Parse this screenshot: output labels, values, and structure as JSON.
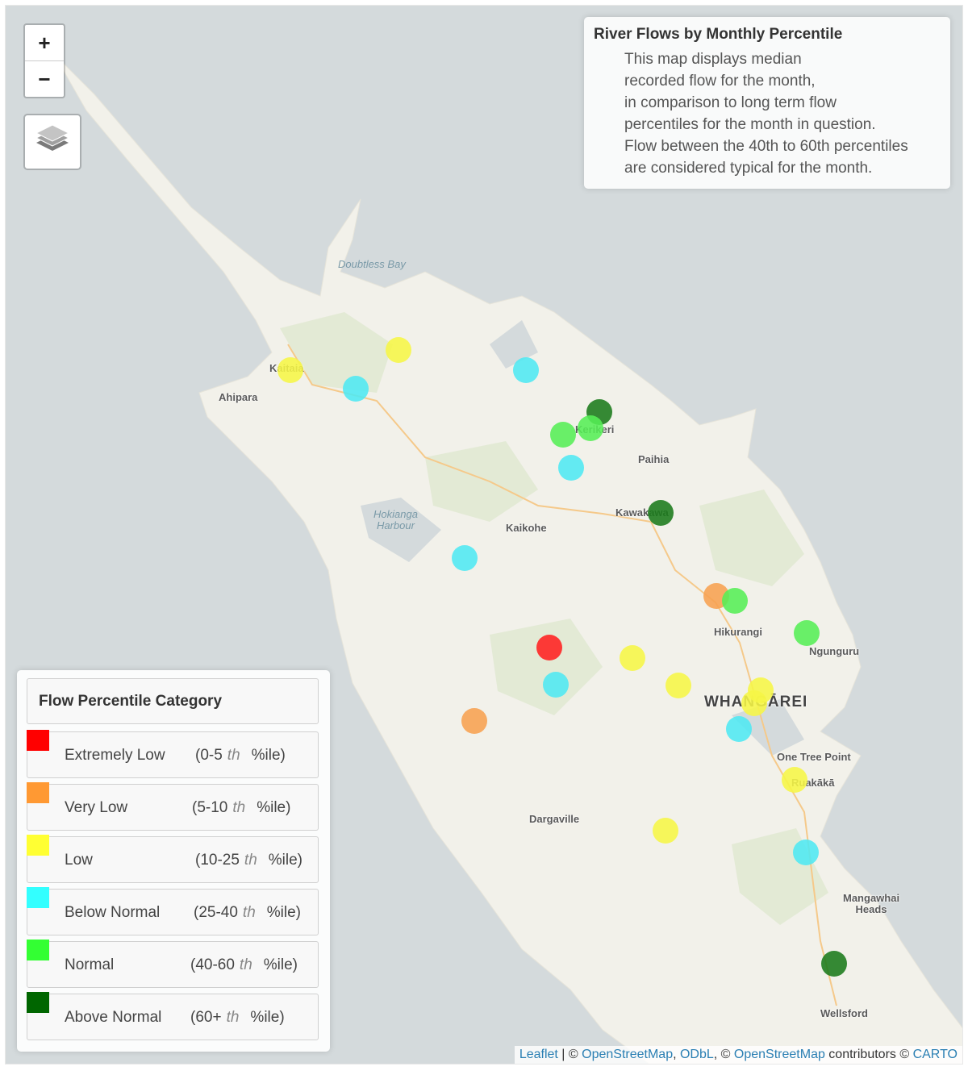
{
  "map": {
    "zoom_in_label": "+",
    "zoom_out_label": "−",
    "layers_icon": "layers-icon",
    "land_color": "#f2f1ea",
    "water_color": "#d4dadc",
    "places": [
      {
        "name": "Doubtless Bay",
        "kind": "water"
      },
      {
        "name": "Kaitaia",
        "kind": "town"
      },
      {
        "name": "Ahipara",
        "kind": "town"
      },
      {
        "name": "Kerikeri",
        "kind": "town"
      },
      {
        "name": "Paihia",
        "kind": "town"
      },
      {
        "name": "Hokianga\nHarbour",
        "kind": "water"
      },
      {
        "name": "Kaikohe",
        "kind": "town"
      },
      {
        "name": "Kawakawa",
        "kind": "town"
      },
      {
        "name": "Hikurangi",
        "kind": "town"
      },
      {
        "name": "Ngunguru",
        "kind": "town"
      },
      {
        "name": "WHANGĀREI",
        "kind": "city"
      },
      {
        "name": "One Tree Point",
        "kind": "town"
      },
      {
        "name": "Ruakākā",
        "kind": "town"
      },
      {
        "name": "Dargaville",
        "kind": "town"
      },
      {
        "name": "Mangawhai\nHeads",
        "kind": "town"
      },
      {
        "name": "Wellsford",
        "kind": "town"
      }
    ],
    "sites": [
      {
        "category": "Low"
      },
      {
        "category": "Low"
      },
      {
        "category": "Below Normal"
      },
      {
        "category": "Below Normal"
      },
      {
        "category": "Above Normal"
      },
      {
        "category": "Normal"
      },
      {
        "category": "Normal"
      },
      {
        "category": "Below Normal"
      },
      {
        "category": "Above Normal"
      },
      {
        "category": "Below Normal"
      },
      {
        "category": "Very Low"
      },
      {
        "category": "Normal"
      },
      {
        "category": "Normal"
      },
      {
        "category": "Extremely Low"
      },
      {
        "category": "Low"
      },
      {
        "category": "Below Normal"
      },
      {
        "category": "Low"
      },
      {
        "category": "Low"
      },
      {
        "category": "Low"
      },
      {
        "category": "Below Normal"
      },
      {
        "category": "Very Low"
      },
      {
        "category": "Low"
      },
      {
        "category": "Low"
      },
      {
        "category": "Below Normal"
      },
      {
        "category": "Above Normal"
      }
    ]
  },
  "info": {
    "title": "River Flows by Monthly Percentile",
    "lines": [
      "This map displays median",
      "recorded flow for the month,",
      "in comparison to long term flow",
      "percentiles for the month in question.",
      "Flow between the 40th to 60th percentiles",
      "are considered typical for the month."
    ]
  },
  "legend": {
    "title": "Flow Percentile Category",
    "th": "th",
    "unit": "%ile)",
    "items": [
      {
        "label": "Extremely Low",
        "range": "(0-5",
        "color": "#ff0000"
      },
      {
        "label": "Very Low",
        "range": "(5-10",
        "color": "#ff9933"
      },
      {
        "label": "Low",
        "range": "(10-25",
        "color": "#ffff33"
      },
      {
        "label": "Below Normal",
        "range": "(25-40",
        "color": "#33ffff"
      },
      {
        "label": "Normal",
        "range": "(40-60",
        "color": "#33ff33"
      },
      {
        "label": "Above Normal",
        "range": "(60+",
        "color": "#006600"
      }
    ]
  },
  "attribution": {
    "leaflet": "Leaflet",
    "sep1": " | © ",
    "osm1": "OpenStreetMap",
    "comma": ", ",
    "odbl": "ODbL",
    "sep2": ", © ",
    "osm2": "OpenStreetMap",
    "contrib": " contributors © ",
    "carto": "CARTO"
  }
}
